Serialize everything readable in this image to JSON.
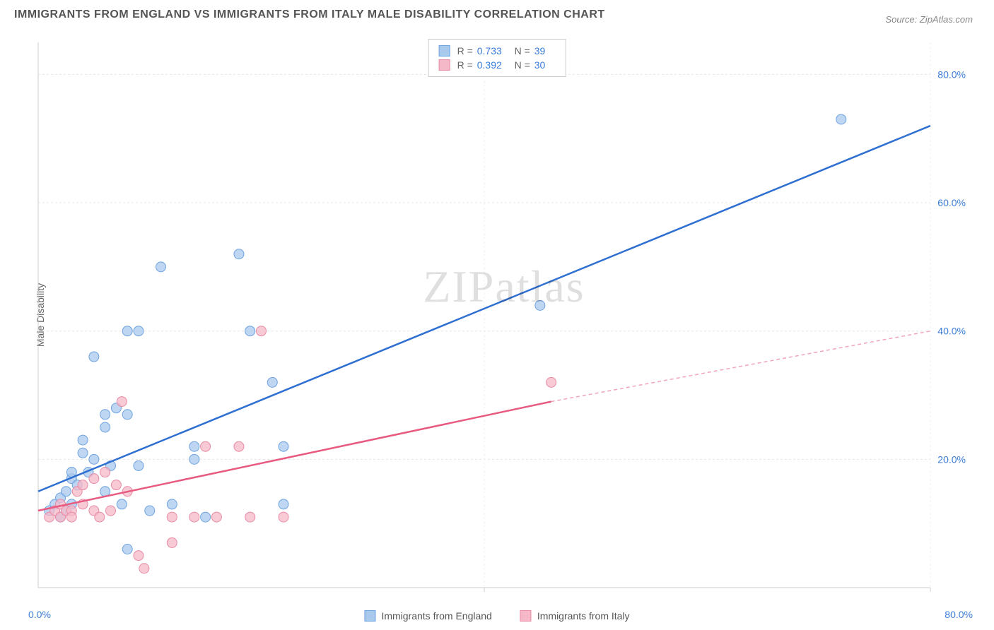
{
  "title": "IMMIGRANTS FROM ENGLAND VS IMMIGRANTS FROM ITALY MALE DISABILITY CORRELATION CHART",
  "source_label": "Source:",
  "source_value": "ZipAtlas.com",
  "y_axis_label": "Male Disability",
  "watermark": "ZIPatlas",
  "x_origin_label": "0.0%",
  "x_max_label": "80.0%",
  "chart": {
    "type": "scatter",
    "xlim": [
      0,
      80
    ],
    "ylim": [
      0,
      85
    ],
    "x_ticks": [
      0,
      40,
      80
    ],
    "y_ticks": [
      20,
      40,
      60,
      80
    ],
    "y_tick_labels": [
      "20.0%",
      "40.0%",
      "60.0%",
      "80.0%"
    ],
    "background_color": "#ffffff",
    "grid_color": "#e5e5e5",
    "axis_color": "#cccccc",
    "tick_color": "#cccccc",
    "series": [
      {
        "id": "england",
        "label": "Immigrants from England",
        "color_fill": "#a8c8ec",
        "color_stroke": "#6fa3e0",
        "marker_radius": 7,
        "marker_opacity": 0.75,
        "r": "0.733",
        "n": "39",
        "trend": {
          "x1": 0,
          "y1": 15,
          "x2": 80,
          "y2": 72,
          "color": "#2e6fd1",
          "width": 2.5,
          "dash": "none"
        },
        "points": [
          [
            1,
            12
          ],
          [
            1.5,
            13
          ],
          [
            2,
            11
          ],
          [
            2,
            14
          ],
          [
            2.5,
            15
          ],
          [
            3,
            13
          ],
          [
            3,
            17
          ],
          [
            3,
            18
          ],
          [
            3.5,
            16
          ],
          [
            4,
            21
          ],
          [
            4,
            23
          ],
          [
            4.5,
            18
          ],
          [
            5,
            20
          ],
          [
            5,
            36
          ],
          [
            6,
            15
          ],
          [
            6,
            25
          ],
          [
            6,
            27
          ],
          [
            6.5,
            19
          ],
          [
            7,
            28
          ],
          [
            7.5,
            13
          ],
          [
            8,
            40
          ],
          [
            8,
            27
          ],
          [
            9,
            19
          ],
          [
            9,
            40
          ],
          [
            10,
            12
          ],
          [
            11,
            50
          ],
          [
            12,
            13
          ],
          [
            14,
            20
          ],
          [
            14,
            22
          ],
          [
            15,
            11
          ],
          [
            18,
            52
          ],
          [
            19,
            40
          ],
          [
            21,
            32
          ],
          [
            22,
            22
          ],
          [
            22,
            13
          ],
          [
            45,
            44
          ],
          [
            72,
            73
          ],
          [
            8,
            6
          ],
          [
            2.5,
            12
          ]
        ]
      },
      {
        "id": "italy",
        "label": "Immigrants from Italy",
        "color_fill": "#f5b8c8",
        "color_stroke": "#e88ba5",
        "marker_radius": 7,
        "marker_opacity": 0.75,
        "r": "0.392",
        "n": "30",
        "trend": {
          "x1": 0,
          "y1": 12,
          "x2": 46,
          "y2": 29,
          "color": "#e85a7f",
          "width": 2.5,
          "dash": "none"
        },
        "trend_dashed": {
          "x1": 46,
          "y1": 29,
          "x2": 80,
          "y2": 40,
          "color": "#f0a5b8",
          "width": 1.5,
          "dash": "5,4"
        },
        "points": [
          [
            1,
            11
          ],
          [
            1.5,
            12
          ],
          [
            2,
            11
          ],
          [
            2,
            13
          ],
          [
            2.5,
            12
          ],
          [
            3,
            12
          ],
          [
            3,
            11
          ],
          [
            3.5,
            15
          ],
          [
            4,
            13
          ],
          [
            4,
            16
          ],
          [
            5,
            12
          ],
          [
            5,
            17
          ],
          [
            5.5,
            11
          ],
          [
            6,
            18
          ],
          [
            6.5,
            12
          ],
          [
            7,
            16
          ],
          [
            7.5,
            29
          ],
          [
            8,
            15
          ],
          [
            9,
            5
          ],
          [
            9.5,
            3
          ],
          [
            12,
            7
          ],
          [
            12,
            11
          ],
          [
            14,
            11
          ],
          [
            15,
            22
          ],
          [
            16,
            11
          ],
          [
            18,
            22
          ],
          [
            19,
            11
          ],
          [
            20,
            40
          ],
          [
            22,
            11
          ],
          [
            46,
            32
          ]
        ]
      }
    ]
  },
  "legend_top": {
    "r_label": "R =",
    "n_label": "N ="
  }
}
